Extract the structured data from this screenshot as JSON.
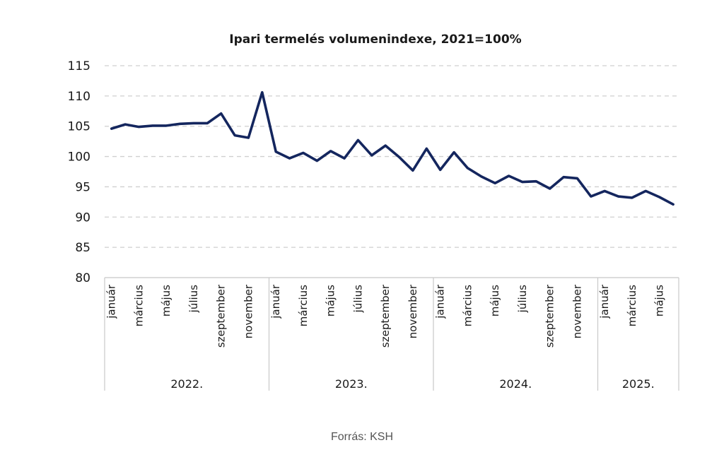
{
  "chart_data": {
    "type": "line",
    "title": "Ipari termelés  volumenindexe, 2021=100%",
    "ylim": [
      80,
      115
    ],
    "yticks": [
      80,
      85,
      90,
      95,
      100,
      105,
      110,
      115
    ],
    "grid": true,
    "line_color": "#14265e",
    "x_tick_labels": [
      "január",
      "március",
      "május",
      "július",
      "szeptember",
      "november",
      "január",
      "március",
      "május",
      "július",
      "szeptember",
      "november",
      "január",
      "március",
      "május",
      "július",
      "szeptember",
      "november",
      "január",
      "március",
      "május"
    ],
    "years": [
      {
        "label": "2022.",
        "months": 12
      },
      {
        "label": "2023.",
        "months": 12
      },
      {
        "label": "2024.",
        "months": 12
      },
      {
        "label": "2025.",
        "months": 6
      }
    ],
    "series": [
      {
        "values": [
          104.6,
          105.3,
          104.9,
          105.1,
          105.1,
          105.4,
          105.5,
          105.5,
          107.1,
          103.5,
          103.1,
          110.6,
          100.8,
          99.7,
          100.6,
          99.3,
          100.9,
          99.7,
          102.7,
          100.2,
          101.8,
          99.9,
          97.7,
          101.3,
          97.8,
          100.7,
          98.1,
          96.7,
          95.6,
          96.8,
          95.8,
          95.9,
          94.7,
          96.6,
          96.4,
          93.4,
          94.3,
          93.4,
          93.2,
          94.3,
          93.3,
          92.1
        ]
      }
    ]
  },
  "footer": {
    "source": "Forrás: KSH"
  }
}
